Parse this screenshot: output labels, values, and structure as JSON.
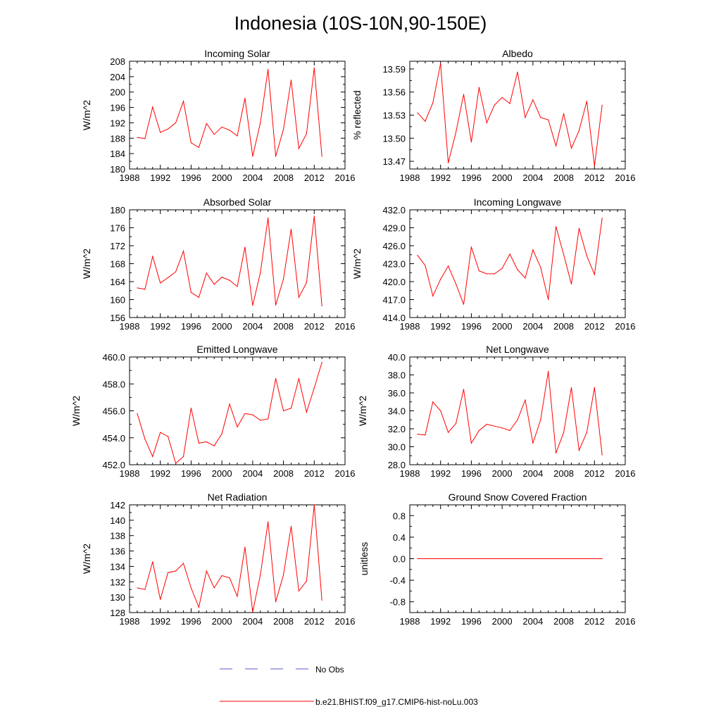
{
  "figure": {
    "title": "Indonesia (10S-10N,90-150E)"
  },
  "legend": [
    {
      "label": "No Obs",
      "color": "#5a5acd",
      "style": "dashed"
    },
    {
      "label": "b.e21.BHIST.f09_g17.CMIP6-hist-noLu.003",
      "color": "#ff0000",
      "style": "solid"
    }
  ],
  "chart_data": [
    {
      "type": "line",
      "title": "Incoming Solar",
      "ylabel": "W/m^2",
      "xlim": [
        1988,
        2016
      ],
      "xticks": [
        "1988",
        "1992",
        "1996",
        "2000",
        "2004",
        "2008",
        "2012",
        "2016"
      ],
      "ylim": [
        180,
        208
      ],
      "yticks": [
        "180",
        "184",
        "188",
        "192",
        "196",
        "200",
        "204",
        "208"
      ],
      "series": [
        {
          "color": "#ff0000",
          "x": [
            1989,
            1990,
            1991,
            1992,
            1993,
            1994,
            1995,
            1996,
            1997,
            1998,
            1999,
            2000,
            2001,
            2002,
            2003,
            2004,
            2005,
            2006,
            2007,
            2008,
            2009,
            2010,
            2011,
            2012,
            2013
          ],
          "y": [
            188.2,
            187.9,
            196.1,
            189.5,
            190.4,
            192.0,
            197.6,
            186.8,
            185.6,
            191.8,
            189.0,
            190.9,
            190.1,
            188.6,
            198.4,
            183.3,
            192.0,
            205.9,
            183.3,
            190.3,
            203.1,
            185.3,
            189.2,
            206.3,
            183.3
          ]
        }
      ]
    },
    {
      "type": "line",
      "title": "Albedo",
      "ylabel": "% reflected",
      "xlim": [
        1988,
        2016
      ],
      "xticks": [
        "1988",
        "1992",
        "1996",
        "2000",
        "2004",
        "2008",
        "2012",
        "2016"
      ],
      "ylim": [
        13.46,
        13.6
      ],
      "yticks": [
        "13.47",
        "13.50",
        "13.53",
        "13.56",
        "13.59"
      ],
      "series": [
        {
          "color": "#ff0000",
          "x": [
            1989,
            1990,
            1991,
            1992,
            1993,
            1994,
            1995,
            1996,
            1997,
            1998,
            1999,
            2000,
            2001,
            2002,
            2003,
            2004,
            2005,
            2006,
            2007,
            2008,
            2009,
            2010,
            2011,
            2012,
            2013
          ],
          "y": [
            13.533,
            13.522,
            13.546,
            13.597,
            13.468,
            13.508,
            13.557,
            13.495,
            13.566,
            13.52,
            13.543,
            13.553,
            13.545,
            13.586,
            13.527,
            13.55,
            13.527,
            13.524,
            13.49,
            13.532,
            13.487,
            13.51,
            13.548,
            13.464,
            13.543
          ]
        }
      ]
    },
    {
      "type": "line",
      "title": "Absorbed Solar",
      "ylabel": "W/m^2",
      "xlim": [
        1988,
        2016
      ],
      "xticks": [
        "1988",
        "1992",
        "1996",
        "2000",
        "2004",
        "2008",
        "2012",
        "2016"
      ],
      "ylim": [
        156,
        180
      ],
      "yticks": [
        "156",
        "160",
        "164",
        "168",
        "172",
        "176",
        "180"
      ],
      "series": [
        {
          "color": "#ff0000",
          "x": [
            1989,
            1990,
            1991,
            1992,
            1993,
            1994,
            1995,
            1996,
            1997,
            1998,
            1999,
            2000,
            2001,
            2002,
            2003,
            2004,
            2005,
            2006,
            2007,
            2008,
            2009,
            2010,
            2011,
            2012,
            2013
          ],
          "y": [
            162.6,
            162.3,
            169.6,
            163.7,
            164.9,
            166.2,
            170.8,
            161.6,
            160.5,
            165.9,
            163.4,
            165.0,
            164.3,
            162.9,
            171.7,
            158.7,
            166.0,
            178.2,
            158.8,
            164.6,
            175.7,
            160.5,
            163.8,
            178.6,
            158.6
          ]
        }
      ]
    },
    {
      "type": "line",
      "title": "Incoming Longwave",
      "ylabel": "W/m^2",
      "xlim": [
        1988,
        2016
      ],
      "xticks": [
        "1988",
        "1992",
        "1996",
        "2000",
        "2004",
        "2008",
        "2012",
        "2016"
      ],
      "ylim": [
        414.0,
        432.0
      ],
      "yticks": [
        "414.0",
        "417.0",
        "420.0",
        "423.0",
        "426.0",
        "429.0",
        "432.0"
      ],
      "series": [
        {
          "color": "#ff0000",
          "x": [
            1989,
            1990,
            1991,
            1992,
            1993,
            1994,
            1995,
            1996,
            1997,
            1998,
            1999,
            2000,
            2001,
            2002,
            2003,
            2004,
            2005,
            2006,
            2007,
            2008,
            2009,
            2010,
            2011,
            2012,
            2013
          ],
          "y": [
            424.4,
            422.7,
            417.6,
            420.4,
            422.6,
            419.6,
            416.2,
            425.8,
            421.8,
            421.3,
            421.3,
            422.2,
            424.6,
            422.0,
            420.6,
            425.3,
            422.4,
            417.0,
            429.2,
            424.5,
            419.6,
            428.9,
            424.3,
            421.2,
            430.6
          ]
        }
      ]
    },
    {
      "type": "line",
      "title": "Emitted Longwave",
      "ylabel": "W/m^2",
      "xlim": [
        1988,
        2016
      ],
      "xticks": [
        "1988",
        "1992",
        "1996",
        "2000",
        "2004",
        "2008",
        "2012",
        "2016"
      ],
      "ylim": [
        452.0,
        460.0
      ],
      "yticks": [
        "452.0",
        "454.0",
        "456.0",
        "458.0",
        "460.0"
      ],
      "series": [
        {
          "color": "#ff0000",
          "x": [
            1989,
            1990,
            1991,
            1992,
            1993,
            1994,
            1995,
            1996,
            1997,
            1998,
            1999,
            2000,
            2001,
            2002,
            2003,
            2004,
            2005,
            2006,
            2007,
            2008,
            2009,
            2010,
            2011,
            2012,
            2013
          ],
          "y": [
            455.8,
            453.9,
            452.6,
            454.4,
            454.1,
            452.1,
            452.6,
            456.2,
            453.6,
            453.7,
            453.4,
            454.3,
            456.5,
            454.8,
            455.8,
            455.7,
            455.3,
            455.4,
            458.4,
            456.0,
            456.2,
            458.4,
            455.9,
            457.7,
            459.6
          ]
        }
      ]
    },
    {
      "type": "line",
      "title": "Net Longwave",
      "ylabel": "W/m^2",
      "xlim": [
        1988,
        2016
      ],
      "xticks": [
        "1988",
        "1992",
        "1996",
        "2000",
        "2004",
        "2008",
        "2012",
        "2016"
      ],
      "ylim": [
        28.0,
        40.0
      ],
      "yticks": [
        "28.0",
        "30.0",
        "32.0",
        "34.0",
        "36.0",
        "38.0",
        "40.0"
      ],
      "series": [
        {
          "color": "#ff0000",
          "x": [
            1989,
            1990,
            1991,
            1992,
            1993,
            1994,
            1995,
            1996,
            1997,
            1998,
            1999,
            2000,
            2001,
            2002,
            2003,
            2004,
            2005,
            2006,
            2007,
            2008,
            2009,
            2010,
            2011,
            2012,
            2013
          ],
          "y": [
            31.4,
            31.3,
            35.0,
            34.0,
            31.6,
            32.6,
            36.4,
            30.4,
            31.8,
            32.5,
            32.3,
            32.1,
            31.8,
            33.0,
            35.2,
            30.4,
            33.0,
            38.4,
            29.3,
            31.6,
            36.6,
            29.6,
            31.6,
            36.6,
            29.1
          ]
        }
      ]
    },
    {
      "type": "line",
      "title": "Net Radiation",
      "ylabel": "W/m^2",
      "xlim": [
        1988,
        2016
      ],
      "xticks": [
        "1988",
        "1992",
        "1996",
        "2000",
        "2004",
        "2008",
        "2012",
        "2016"
      ],
      "ylim": [
        128,
        142
      ],
      "yticks": [
        "128",
        "130",
        "132",
        "134",
        "136",
        "138",
        "140",
        "142"
      ],
      "series": [
        {
          "color": "#ff0000",
          "x": [
            1989,
            1990,
            1991,
            1992,
            1993,
            1994,
            1995,
            1996,
            1997,
            1998,
            1999,
            2000,
            2001,
            2002,
            2003,
            2004,
            2005,
            2006,
            2007,
            2008,
            2009,
            2010,
            2011,
            2012,
            2013
          ],
          "y": [
            131.2,
            131.0,
            134.6,
            129.7,
            133.2,
            133.4,
            134.4,
            131.2,
            128.7,
            133.4,
            131.2,
            132.8,
            132.5,
            130.1,
            136.5,
            128.1,
            132.9,
            139.8,
            129.4,
            132.9,
            139.2,
            130.8,
            132.1,
            142.0,
            129.6
          ]
        }
      ]
    },
    {
      "type": "line",
      "title": "Ground Snow Covered Fraction",
      "ylabel": "unitless",
      "xlim": [
        1988,
        2016
      ],
      "xticks": [
        "1988",
        "1992",
        "1996",
        "2000",
        "2004",
        "2008",
        "2012",
        "2016"
      ],
      "ylim": [
        -1.0,
        1.0
      ],
      "yticks": [
        "-0.8",
        "-0.4",
        "0.0",
        "0.4",
        "0.8"
      ],
      "yticks_at": [
        -0.8,
        -0.4,
        0.0,
        0.4,
        0.8
      ],
      "series": [
        {
          "color": "#ff0000",
          "x": [
            1989,
            2013
          ],
          "y": [
            0.0,
            0.0
          ]
        }
      ]
    }
  ]
}
